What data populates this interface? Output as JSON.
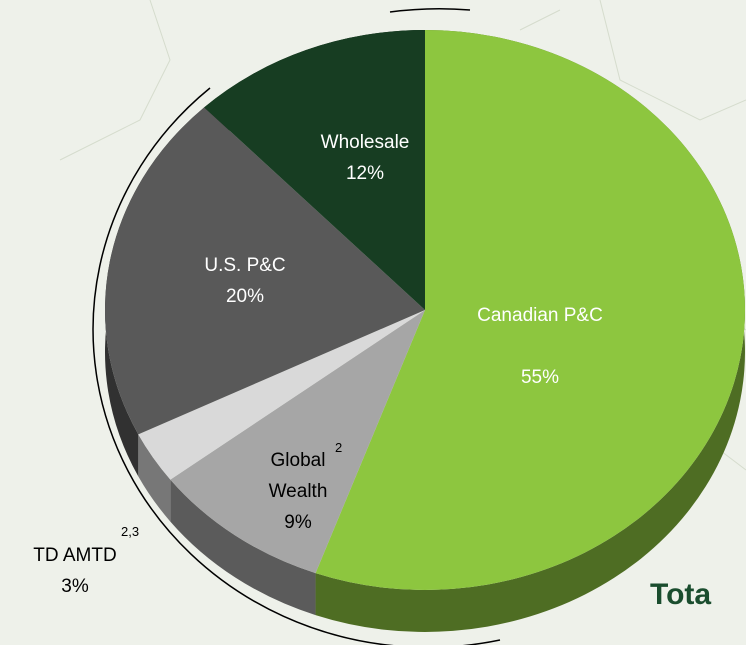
{
  "chart_data": {
    "type": "pie",
    "categories": [
      "Canadian P&C",
      "Global Wealth",
      "TD AMTD",
      "U.S. P&C",
      "Wholesale"
    ],
    "footnotes": [
      null,
      "2",
      "2,3",
      null,
      null
    ],
    "values": [
      55,
      9,
      3,
      20,
      12
    ],
    "value_labels": [
      "55%",
      "9%",
      "3%",
      "20%",
      "12%"
    ],
    "colors": [
      "#8dc63f",
      "#a6a6a6",
      "#d9d9d9",
      "#595959",
      "#173d22"
    ],
    "annotation": "Tota"
  }
}
